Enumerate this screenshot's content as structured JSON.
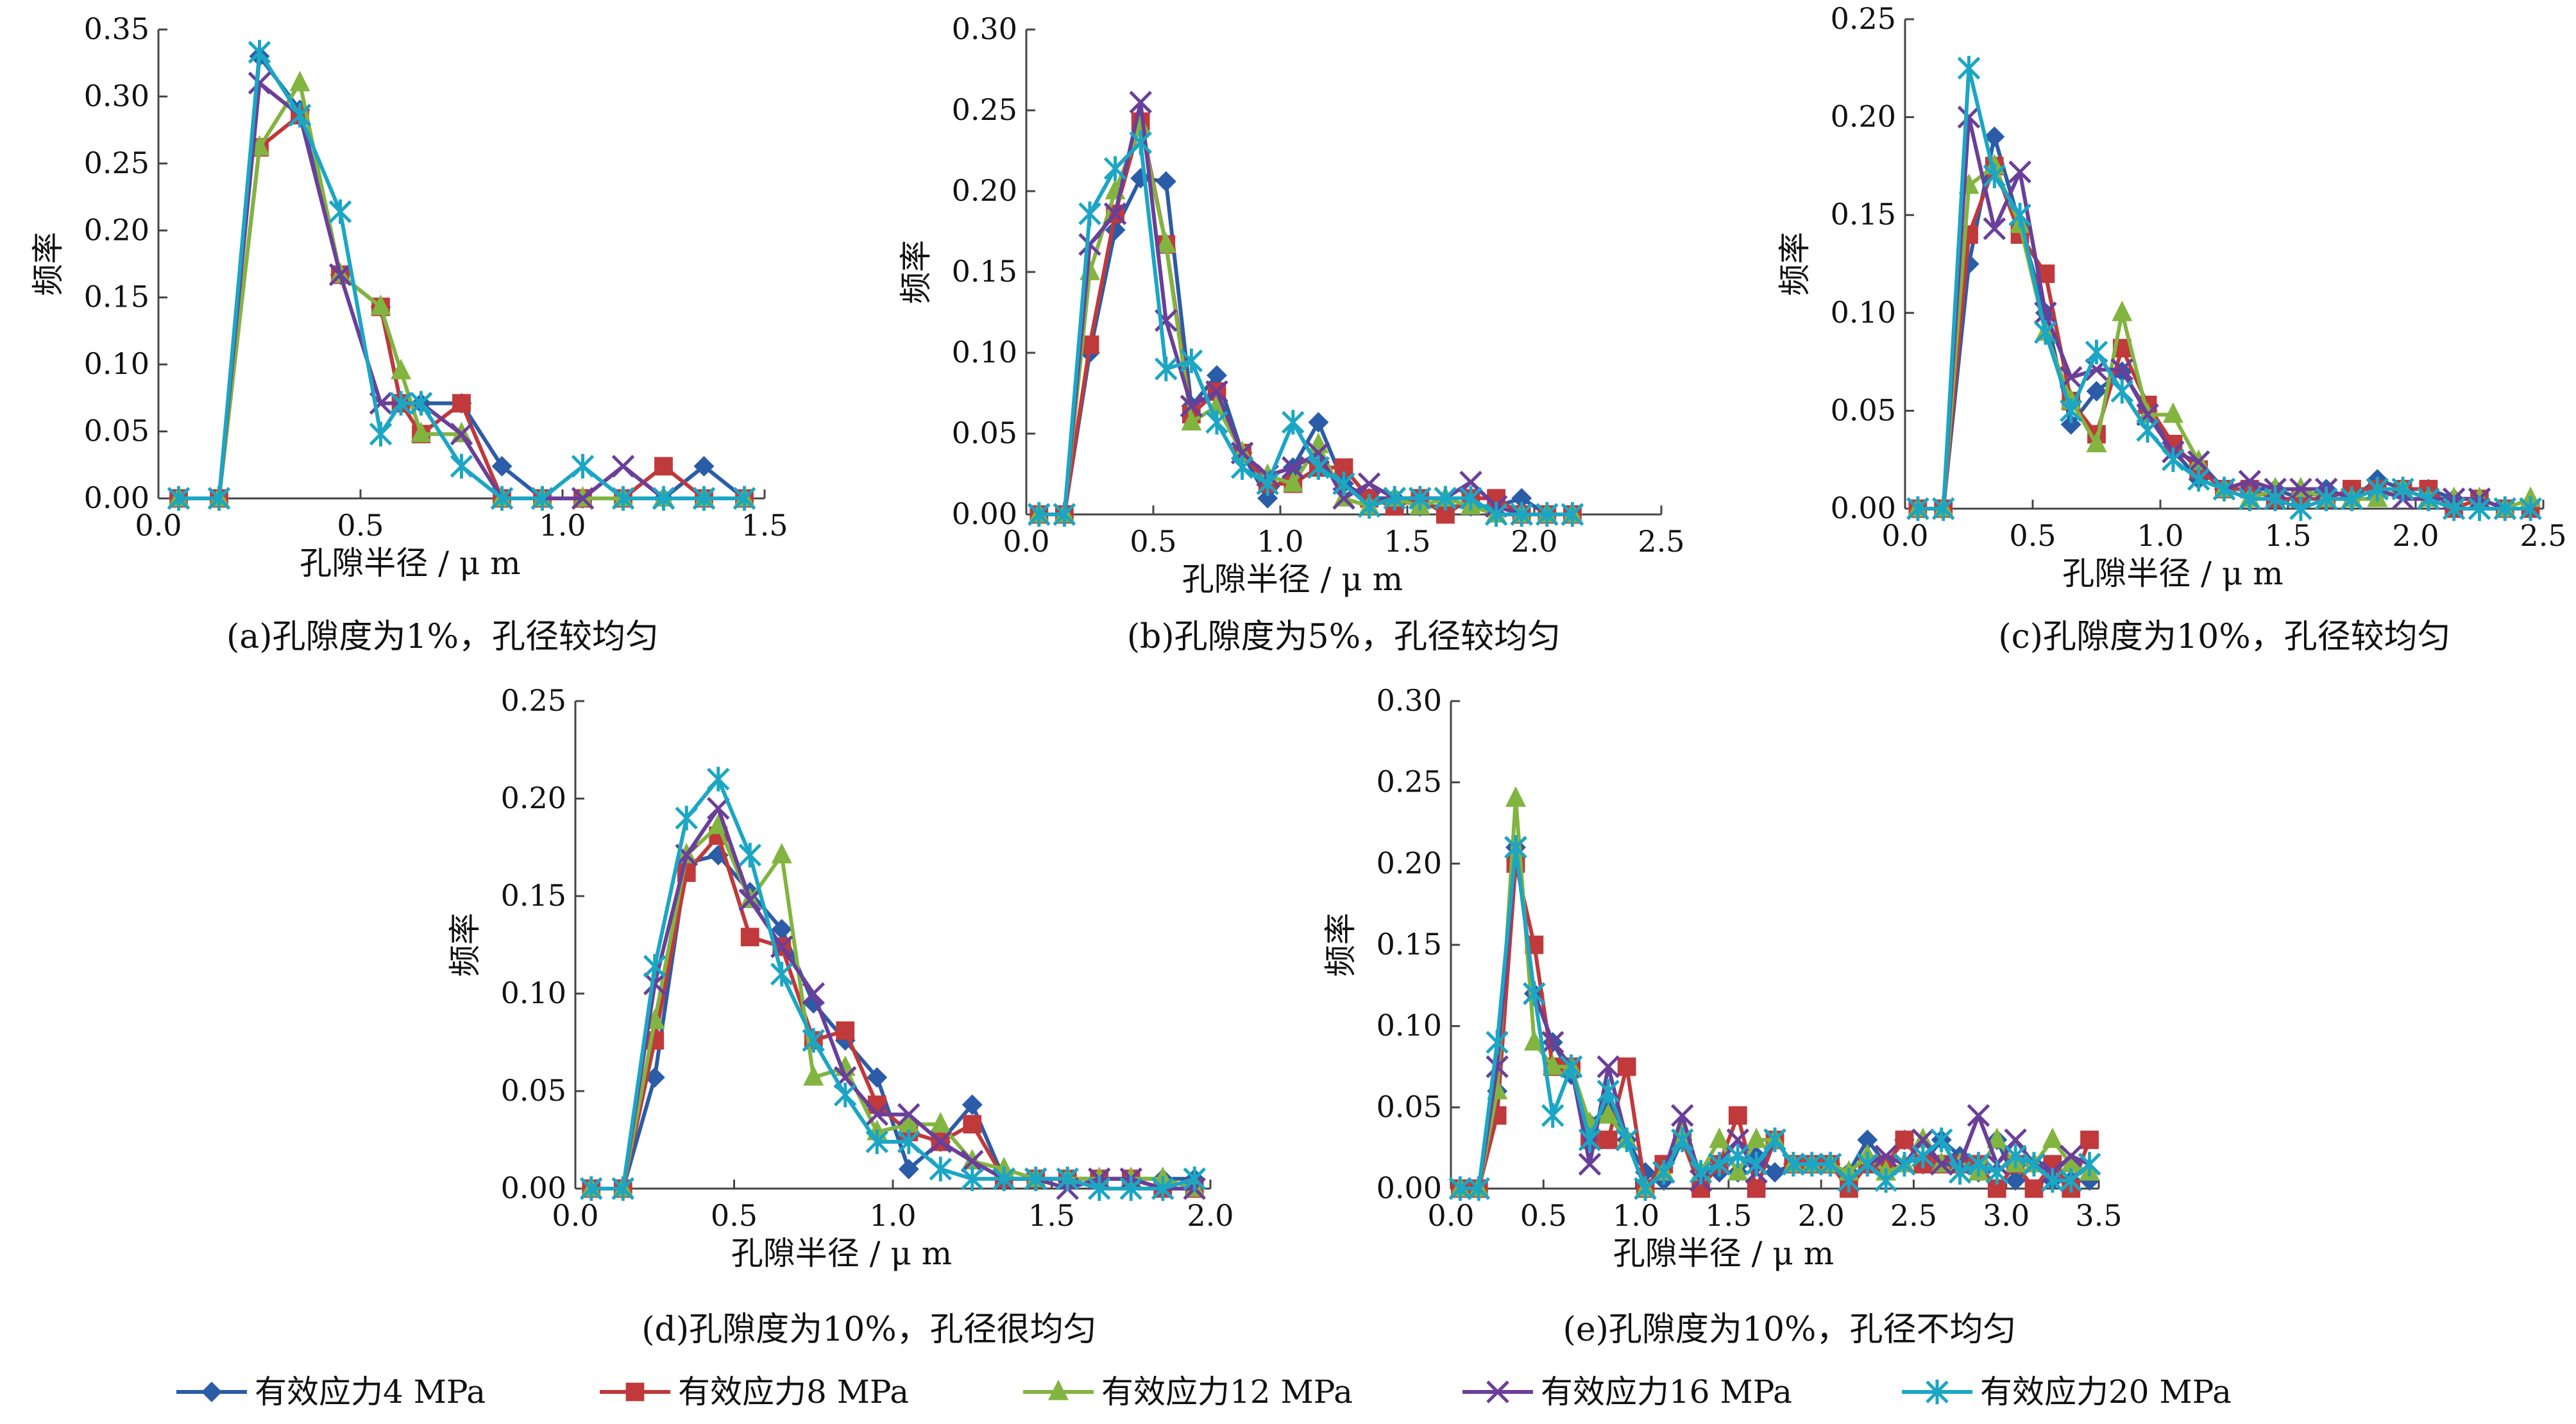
{
  "figure": {
    "legend": [
      {
        "label": "有效应力4 MPa",
        "color": "#2b5ca8",
        "marker": "diamond"
      },
      {
        "label": "有效应力8 MPa",
        "color": "#c0393b",
        "marker": "square"
      },
      {
        "label": "有效应力12 MPa",
        "color": "#82b440",
        "marker": "triangle"
      },
      {
        "label": "有效应力16 MPa",
        "color": "#6a3f99",
        "marker": "x"
      },
      {
        "label": "有效应力20 MPa",
        "color": "#1ba6c4",
        "marker": "star"
      }
    ]
  },
  "chart_data": [
    {
      "id": "a",
      "type": "line",
      "caption": "(a)孔隙度为1%，孔径较均匀",
      "xlabel": "孔隙半径 / μ m",
      "ylabel": "频率",
      "xlim": [
        0,
        1.5
      ],
      "ylim": [
        0,
        0.35
      ],
      "xticks": [
        "0.0",
        "0.5",
        "1.0",
        "1.5"
      ],
      "yticks": [
        "0.00",
        "0.05",
        "0.10",
        "0.15",
        "0.20",
        "0.25",
        "0.30",
        "0.35"
      ],
      "x": [
        0.05,
        0.15,
        0.25,
        0.35,
        0.45,
        0.55,
        0.6,
        0.65,
        0.75,
        0.85,
        0.95,
        1.05,
        1.15,
        1.25,
        1.35,
        1.45
      ],
      "series": [
        {
          "name": "有效应力4 MPa",
          "values": [
            0,
            0,
            0.33,
            0.29,
            0.167,
            0.143,
            0.071,
            0.071,
            0.071,
            0.024,
            0,
            0,
            0,
            0,
            0.024,
            0
          ]
        },
        {
          "name": "有效应力8 MPa",
          "values": [
            0,
            0,
            0.262,
            0.286,
            0.167,
            0.143,
            0.071,
            0.048,
            0.071,
            0,
            0,
            0,
            0,
            0.024,
            0,
            0
          ]
        },
        {
          "name": "有效应力12 MPa",
          "values": [
            0,
            0,
            0.262,
            0.31,
            0.167,
            0.143,
            0.095,
            0.048,
            0.048,
            0,
            0,
            0,
            0,
            0,
            0,
            0
          ]
        },
        {
          "name": "有效应力16 MPa",
          "values": [
            0,
            0,
            0.31,
            0.286,
            0.167,
            0.071,
            0.071,
            0.071,
            0.048,
            0,
            0,
            0,
            0.024,
            0,
            0,
            0
          ]
        },
        {
          "name": "有效应力20 MPa",
          "values": [
            0,
            0,
            0.333,
            0.286,
            0.214,
            0.048,
            0.071,
            0.071,
            0.024,
            0,
            0,
            0.024,
            0,
            0,
            0,
            0
          ]
        }
      ]
    },
    {
      "id": "b",
      "type": "line",
      "caption": "(b)孔隙度为5%，孔径较均匀",
      "xlabel": "孔隙半径 / μ m",
      "ylabel": "频率",
      "xlim": [
        0,
        2.5
      ],
      "ylim": [
        0,
        0.3
      ],
      "xticks": [
        "0.0",
        "0.5",
        "1.0",
        "1.5",
        "2.0",
        "2.5"
      ],
      "yticks": [
        "0.00",
        "0.05",
        "0.10",
        "0.15",
        "0.20",
        "0.25",
        "0.30"
      ],
      "x": [
        0.05,
        0.15,
        0.25,
        0.35,
        0.45,
        0.55,
        0.65,
        0.75,
        0.85,
        0.95,
        1.05,
        1.15,
        1.25,
        1.35,
        1.45,
        1.55,
        1.65,
        1.75,
        1.85,
        1.95,
        2.05,
        2.15
      ],
      "series": [
        {
          "name": "有效应力4 MPa",
          "values": [
            0,
            0,
            0.1,
            0.176,
            0.208,
            0.206,
            0.067,
            0.086,
            0.038,
            0.01,
            0.029,
            0.057,
            0.019,
            0.01,
            0.01,
            0.005,
            0.005,
            0.005,
            0.005,
            0.01,
            0,
            0
          ]
        },
        {
          "name": "有效应力8 MPa",
          "values": [
            0,
            0,
            0.105,
            0.186,
            0.243,
            0.167,
            0.062,
            0.076,
            0.038,
            0.019,
            0.019,
            0.029,
            0.029,
            0.01,
            0.005,
            0.01,
            0,
            0.01,
            0.01,
            0,
            0,
            0
          ]
        },
        {
          "name": "有效应力12 MPa",
          "values": [
            0,
            0,
            0.15,
            0.2,
            0.24,
            0.167,
            0.057,
            0.067,
            0.038,
            0.024,
            0.019,
            0.043,
            0.01,
            0.005,
            0.01,
            0.005,
            0.01,
            0.005,
            0,
            0,
            0,
            0
          ]
        },
        {
          "name": "有效应力16 MPa",
          "values": [
            0,
            0,
            0.167,
            0.186,
            0.255,
            0.12,
            0.067,
            0.076,
            0.038,
            0.024,
            0.029,
            0.038,
            0.01,
            0.019,
            0.01,
            0.01,
            0.01,
            0.02,
            0.005,
            0,
            0,
            0
          ]
        },
        {
          "name": "有效应力20 MPa",
          "values": [
            0,
            0,
            0.186,
            0.214,
            0.23,
            0.09,
            0.095,
            0.057,
            0.029,
            0.019,
            0.057,
            0.029,
            0.019,
            0.005,
            0.01,
            0.01,
            0.01,
            0.01,
            0,
            0,
            0,
            0
          ]
        }
      ]
    },
    {
      "id": "c",
      "type": "line",
      "caption": "(c)孔隙度为10%，孔径较均匀",
      "xlabel": "孔隙半径 / μ m",
      "ylabel": "频率",
      "xlim": [
        0,
        2.5
      ],
      "ylim": [
        0,
        0.25
      ],
      "xticks": [
        "0.0",
        "0.5",
        "1.0",
        "1.5",
        "2.0",
        "2.5"
      ],
      "yticks": [
        "0.00",
        "0.05",
        "0.10",
        "0.15",
        "0.20",
        "0.25"
      ],
      "x": [
        0.05,
        0.15,
        0.25,
        0.35,
        0.45,
        0.55,
        0.65,
        0.75,
        0.85,
        0.95,
        1.05,
        1.15,
        1.25,
        1.35,
        1.45,
        1.55,
        1.65,
        1.75,
        1.85,
        1.95,
        2.05,
        2.15,
        2.25,
        2.35,
        2.45
      ],
      "series": [
        {
          "name": "有效应力4 MPa",
          "values": [
            0,
            0,
            0.125,
            0.19,
            0.145,
            0.1,
            0.043,
            0.06,
            0.07,
            0.05,
            0.03,
            0.015,
            0.01,
            0.01,
            0.01,
            0.005,
            0.01,
            0.005,
            0.015,
            0.01,
            0.01,
            0.005,
            0.005,
            0,
            0
          ]
        },
        {
          "name": "有效应力8 MPa",
          "values": [
            0,
            0,
            0.14,
            0.175,
            0.14,
            0.12,
            0.055,
            0.038,
            0.082,
            0.053,
            0.033,
            0.02,
            0.01,
            0.01,
            0.005,
            0.005,
            0.005,
            0.01,
            0.01,
            0.01,
            0.01,
            0,
            0.005,
            0,
            0
          ]
        },
        {
          "name": "有效应力12 MPa",
          "values": [
            0,
            0,
            0.165,
            0.175,
            0.145,
            0.09,
            0.055,
            0.033,
            0.1,
            0.048,
            0.048,
            0.024,
            0.01,
            0.005,
            0.01,
            0.01,
            0.005,
            0.005,
            0.005,
            0.01,
            0.005,
            0.005,
            0.005,
            0,
            0.005
          ]
        },
        {
          "name": "有效应力16 MPa",
          "values": [
            0,
            0,
            0.2,
            0.143,
            0.172,
            0.1,
            0.067,
            0.071,
            0.071,
            0.048,
            0.029,
            0.024,
            0.01,
            0.014,
            0.01,
            0.01,
            0.01,
            0.005,
            0.01,
            0.005,
            0.005,
            0.005,
            0.005,
            0,
            0
          ]
        },
        {
          "name": "有效应力20 MPa",
          "values": [
            0,
            0,
            0.225,
            0.17,
            0.15,
            0.09,
            0.05,
            0.08,
            0.06,
            0.04,
            0.025,
            0.015,
            0.01,
            0.005,
            0.005,
            0,
            0.005,
            0.005,
            0.01,
            0.01,
            0.005,
            0,
            0,
            0,
            0
          ]
        }
      ]
    },
    {
      "id": "d",
      "type": "line",
      "caption": "(d)孔隙度为10%，孔径很均匀",
      "xlabel": "孔隙半径 / μ m",
      "ylabel": "频率",
      "xlim": [
        0,
        2.0
      ],
      "ylim": [
        0,
        0.25
      ],
      "xticks": [
        "0.0",
        "0.5",
        "1.0",
        "1.5",
        "2.0"
      ],
      "yticks": [
        "0.00",
        "0.05",
        "0.10",
        "0.15",
        "0.20",
        "0.25"
      ],
      "x": [
        0.05,
        0.15,
        0.25,
        0.35,
        0.45,
        0.55,
        0.65,
        0.75,
        0.85,
        0.95,
        1.05,
        1.15,
        1.25,
        1.35,
        1.45,
        1.55,
        1.65,
        1.75,
        1.85,
        1.95
      ],
      "series": [
        {
          "name": "有效应力4 MPa",
          "values": [
            0,
            0,
            0.057,
            0.167,
            0.171,
            0.152,
            0.133,
            0.095,
            0.076,
            0.057,
            0.01,
            0.024,
            0.043,
            0.005,
            0.005,
            0.005,
            0.005,
            0.005,
            0.005,
            0.005
          ]
        },
        {
          "name": "有效应力8 MPa",
          "values": [
            0,
            0,
            0.076,
            0.162,
            0.181,
            0.129,
            0.124,
            0.076,
            0.081,
            0.043,
            0.029,
            0.024,
            0.033,
            0.005,
            0.005,
            0.005,
            0.005,
            0.005,
            0,
            0
          ]
        },
        {
          "name": "有效应力12 MPa",
          "values": [
            0,
            0,
            0.086,
            0.171,
            0.186,
            0.148,
            0.171,
            0.057,
            0.062,
            0.029,
            0.033,
            0.033,
            0.014,
            0.01,
            0.005,
            0.005,
            0.005,
            0.005,
            0.005,
            0
          ]
        },
        {
          "name": "有效应力16 MPa",
          "values": [
            0,
            0,
            0.105,
            0.171,
            0.195,
            0.148,
            0.124,
            0.1,
            0.057,
            0.038,
            0.038,
            0.024,
            0.014,
            0.005,
            0.005,
            0,
            0.005,
            0.005,
            0,
            0
          ]
        },
        {
          "name": "有效应力20 MPa",
          "values": [
            0,
            0,
            0.114,
            0.19,
            0.21,
            0.171,
            0.11,
            0.076,
            0.048,
            0.024,
            0.024,
            0.01,
            0.005,
            0.005,
            0.005,
            0.005,
            0,
            0,
            0,
            0.005
          ]
        }
      ]
    },
    {
      "id": "e",
      "type": "line",
      "caption": "(e)孔隙度为10%，孔径不均匀",
      "xlabel": "孔隙半径 / μ m",
      "ylabel": "频率",
      "xlim": [
        0,
        3.5
      ],
      "ylim": [
        0,
        0.3
      ],
      "xticks": [
        "0.0",
        "0.5",
        "1.0",
        "1.5",
        "2.0",
        "2.5",
        "3.0",
        "3.5"
      ],
      "yticks": [
        "0.00",
        "0.05",
        "0.10",
        "0.15",
        "0.20",
        "0.25",
        "0.30"
      ],
      "x": [
        0.05,
        0.15,
        0.25,
        0.35,
        0.45,
        0.55,
        0.65,
        0.75,
        0.85,
        0.95,
        1.05,
        1.15,
        1.25,
        1.35,
        1.45,
        1.55,
        1.65,
        1.75,
        1.85,
        1.95,
        2.05,
        2.15,
        2.25,
        2.35,
        2.45,
        2.55,
        2.65,
        2.75,
        2.85,
        2.95,
        3.05,
        3.15,
        3.25,
        3.35,
        3.45
      ],
      "series": [
        {
          "name": "有效应力4 MPa",
          "values": [
            0,
            0,
            0.06,
            0.21,
            0.12,
            0.09,
            0.07,
            0.04,
            0.05,
            0.03,
            0.01,
            0.005,
            0.03,
            0.01,
            0.01,
            0.01,
            0.02,
            0.01,
            0.015,
            0.015,
            0.015,
            0.01,
            0.03,
            0.015,
            0.03,
            0.015,
            0.03,
            0.02,
            0.01,
            0.03,
            0.005,
            0.015,
            0.005,
            0.005,
            0.005
          ]
        },
        {
          "name": "有效应力8 MPa",
          "values": [
            0,
            0,
            0.045,
            0.2,
            0.15,
            0.075,
            0.075,
            0.03,
            0.03,
            0.075,
            0,
            0.015,
            0.03,
            0,
            0.015,
            0.045,
            0,
            0.03,
            0.015,
            0.015,
            0.015,
            0,
            0.015,
            0.015,
            0.03,
            0.015,
            0.015,
            0.015,
            0.015,
            0,
            0.015,
            0,
            0.015,
            0,
            0.03
          ]
        },
        {
          "name": "有效应力12 MPa",
          "values": [
            0,
            0,
            0.06,
            0.24,
            0.09,
            0.075,
            0.075,
            0.04,
            0.045,
            0.03,
            0,
            0.01,
            0.035,
            0.01,
            0.03,
            0.01,
            0.03,
            0.03,
            0.015,
            0.015,
            0.015,
            0.01,
            0.02,
            0.01,
            0.015,
            0.03,
            0.015,
            0.015,
            0.01,
            0.03,
            0.015,
            0.015,
            0.03,
            0.015,
            0.01
          ]
        },
        {
          "name": "有效应力16 MPa",
          "values": [
            0,
            0,
            0.075,
            0.21,
            0.12,
            0.09,
            0.075,
            0.015,
            0.075,
            0.03,
            0,
            0.01,
            0.045,
            0.005,
            0.015,
            0.03,
            0.01,
            0.03,
            0.015,
            0.015,
            0.015,
            0.005,
            0.015,
            0.02,
            0.015,
            0.03,
            0.015,
            0.015,
            0.045,
            0.015,
            0.03,
            0.015,
            0.01,
            0.02,
            0.015
          ]
        },
        {
          "name": "有效应力20 MPa",
          "values": [
            0,
            0,
            0.09,
            0.21,
            0.12,
            0.045,
            0.075,
            0.03,
            0.06,
            0.03,
            0,
            0.01,
            0.03,
            0.01,
            0.015,
            0.02,
            0.015,
            0.03,
            0.015,
            0.015,
            0.015,
            0.005,
            0.015,
            0.005,
            0.015,
            0.02,
            0.03,
            0.01,
            0.015,
            0.01,
            0.02,
            0.015,
            0.005,
            0.005,
            0.015
          ]
        }
      ]
    }
  ]
}
